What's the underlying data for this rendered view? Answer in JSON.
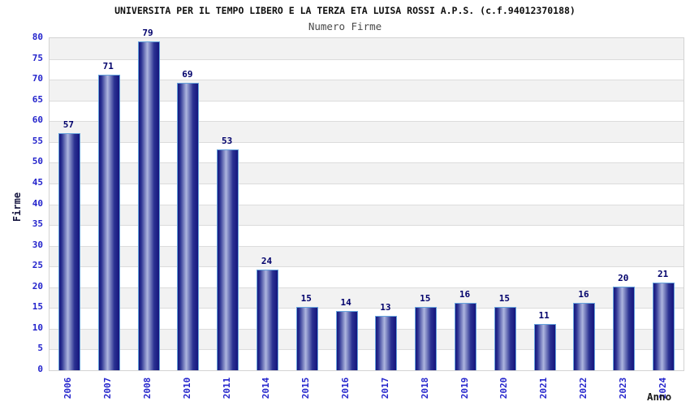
{
  "chart_data": {
    "type": "bar",
    "title": "UNIVERSITA PER IL TEMPO LIBERO E LA TERZA ETA LUISA ROSSI A.P.S. (c.f.94012370188)",
    "subtitle": "Numero Firme",
    "xlabel": "Anno",
    "ylabel": "Firme",
    "categories": [
      "2006",
      "2007",
      "2008",
      "2010",
      "2011",
      "2014",
      "2015",
      "2016",
      "2017",
      "2018",
      "2019",
      "2020",
      "2021",
      "2022",
      "2023",
      "2024"
    ],
    "values": [
      57,
      71,
      79,
      69,
      53,
      24,
      15,
      14,
      13,
      15,
      16,
      15,
      11,
      16,
      20,
      21
    ],
    "ylim": [
      0,
      80
    ],
    "ytick_step": 5,
    "grid": true,
    "legend": false,
    "band_fill": "alternating horizontal stripes, gray on top band",
    "colors": {
      "bar_dark": "#15157d",
      "bar_mid": "#2b3292",
      "bar_light": "#aeb6df",
      "bar_outline": "#66a3dc",
      "value_label": "#00006b",
      "tick_label": "#2424cc",
      "gridline": "#dcdcdc",
      "band_gray": "#f2f2f2",
      "band_white": "#ffffff",
      "frame": "#d3d3d3",
      "title_color": "#0e0e0e",
      "subtitle_color": "#4a4a4a",
      "axis_title": "#15153f"
    }
  }
}
